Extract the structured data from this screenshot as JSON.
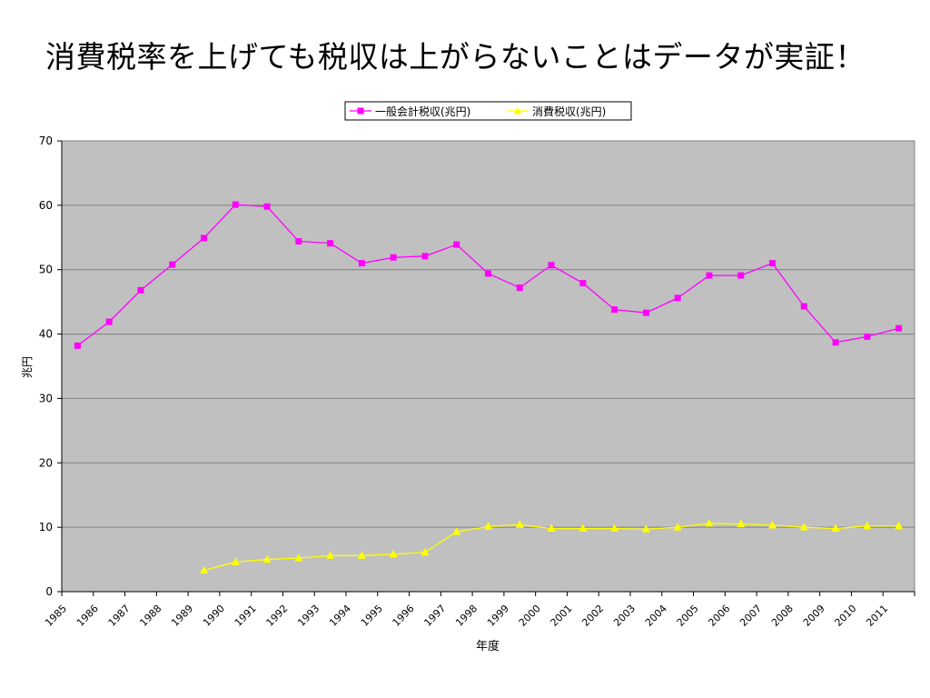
{
  "slide": {
    "title": "消費税率を上げても税収は上がらないことはデータが実証！"
  },
  "chart_data": {
    "type": "line",
    "title": "",
    "xlabel": "年度",
    "ylabel": "兆円",
    "ylim": [
      0,
      70
    ],
    "yticks": [
      0,
      10,
      20,
      30,
      40,
      50,
      60,
      70
    ],
    "grid": true,
    "legend": "top-center",
    "categories": [
      "1985",
      "1986",
      "1987",
      "1988",
      "1989",
      "1990",
      "1991",
      "1992",
      "1993",
      "1994",
      "1995",
      "1996",
      "1997",
      "1998",
      "1999",
      "2000",
      "2001",
      "2002",
      "2003",
      "2004",
      "2005",
      "2006",
      "2007",
      "2008",
      "2009",
      "2010",
      "2011"
    ],
    "series": [
      {
        "name": "一般会計税収(兆円)",
        "color": "#FF00FF",
        "marker": "square",
        "values": [
          38.2,
          41.9,
          46.8,
          50.8,
          54.9,
          60.1,
          59.8,
          54.4,
          54.1,
          51.0,
          51.9,
          52.1,
          53.9,
          49.4,
          47.2,
          50.7,
          47.9,
          43.8,
          43.3,
          45.6,
          49.1,
          49.1,
          51.0,
          44.3,
          38.7,
          39.6,
          40.9
        ]
      },
      {
        "name": "消費税収(兆円)",
        "color": "#FFFF00",
        "marker": "triangle",
        "values": [
          null,
          null,
          null,
          null,
          3.3,
          4.6,
          5.0,
          5.2,
          5.6,
          5.6,
          5.8,
          6.1,
          9.3,
          10.1,
          10.4,
          9.8,
          9.8,
          9.8,
          9.7,
          10.0,
          10.6,
          10.5,
          10.3,
          10.0,
          9.8,
          10.2,
          10.2
        ]
      }
    ],
    "colors": {
      "plot_background": "#C0C0C0",
      "gridline": "#808080"
    }
  }
}
